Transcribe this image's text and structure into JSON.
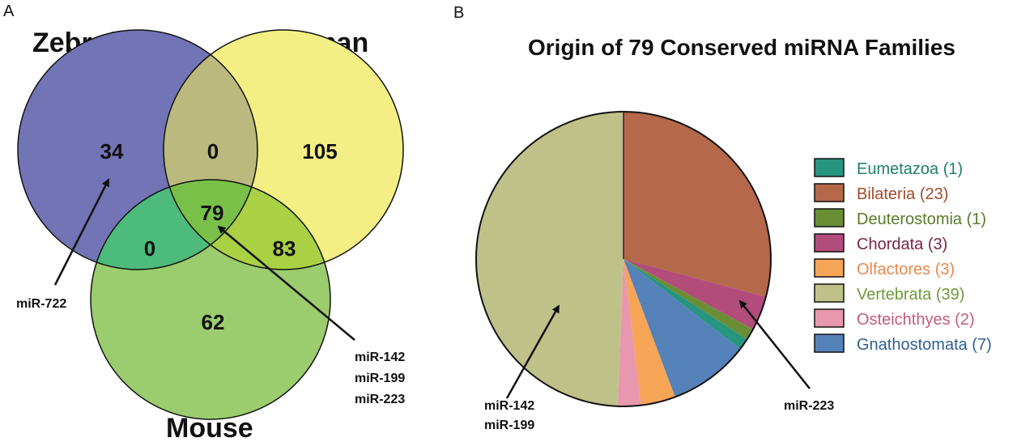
{
  "panels": {
    "a_label": "A",
    "b_label": "B"
  },
  "venn": {
    "sets": [
      {
        "name": "Zebrafish",
        "color": "#7274b6"
      },
      {
        "name": "Human",
        "color": "#f3ef84"
      },
      {
        "name": "Mouse",
        "color": "#9bcc6e"
      }
    ],
    "regions": {
      "zebrafish_only": "34",
      "human_only": "105",
      "mouse_only": "62",
      "zebrafish_human": "0",
      "zebrafish_mouse": "0",
      "human_mouse": "83",
      "all_three": "79"
    },
    "region_colors": {
      "zebrafish_human": "#bcb97e",
      "zebrafish_mouse": "#4dbb7c",
      "human_mouse": "#a9d143",
      "all_three": "#78c048"
    },
    "annotations": {
      "left": "miR-722",
      "right": [
        "miR-142",
        "miR-199",
        "miR-223"
      ]
    }
  },
  "chart_data": {
    "type": "pie",
    "title": "Origin of 79 Conserved miRNA Families",
    "total": 79,
    "slices": [
      {
        "label": "Eumetazoa",
        "value": 1,
        "color": "#27957f",
        "text_color": "#1f7f6b"
      },
      {
        "label": "Bilateria",
        "value": 23,
        "color": "#b5684a",
        "text_color": "#a14b2c"
      },
      {
        "label": "Deuterostomia",
        "value": 1,
        "color": "#6a8e34",
        "text_color": "#5a7c28"
      },
      {
        "label": "Chordata",
        "value": 3,
        "color": "#b24d7b",
        "text_color": "#7b2448"
      },
      {
        "label": "Olfactores",
        "value": 3,
        "color": "#f6a456",
        "text_color": "#e8894a"
      },
      {
        "label": "Vertebrata",
        "value": 39,
        "color": "#bfc288",
        "text_color": "#6e9a3a"
      },
      {
        "label": "Osteichthyes",
        "value": 2,
        "color": "#e897ae",
        "text_color": "#c45a80"
      },
      {
        "label": "Gnathostomata",
        "value": 7,
        "color": "#5581b9",
        "text_color": "#2f5d94"
      }
    ],
    "pie_order": [
      "Bilateria",
      "Chordata",
      "Deuterostomia",
      "Eumetazoa",
      "Gnathostomata",
      "Olfactores",
      "Osteichthyes",
      "Vertebrata"
    ],
    "legend_position": "right",
    "annotations": {
      "left": [
        "miR-142",
        "miR-199"
      ],
      "right": "miR-223"
    }
  }
}
